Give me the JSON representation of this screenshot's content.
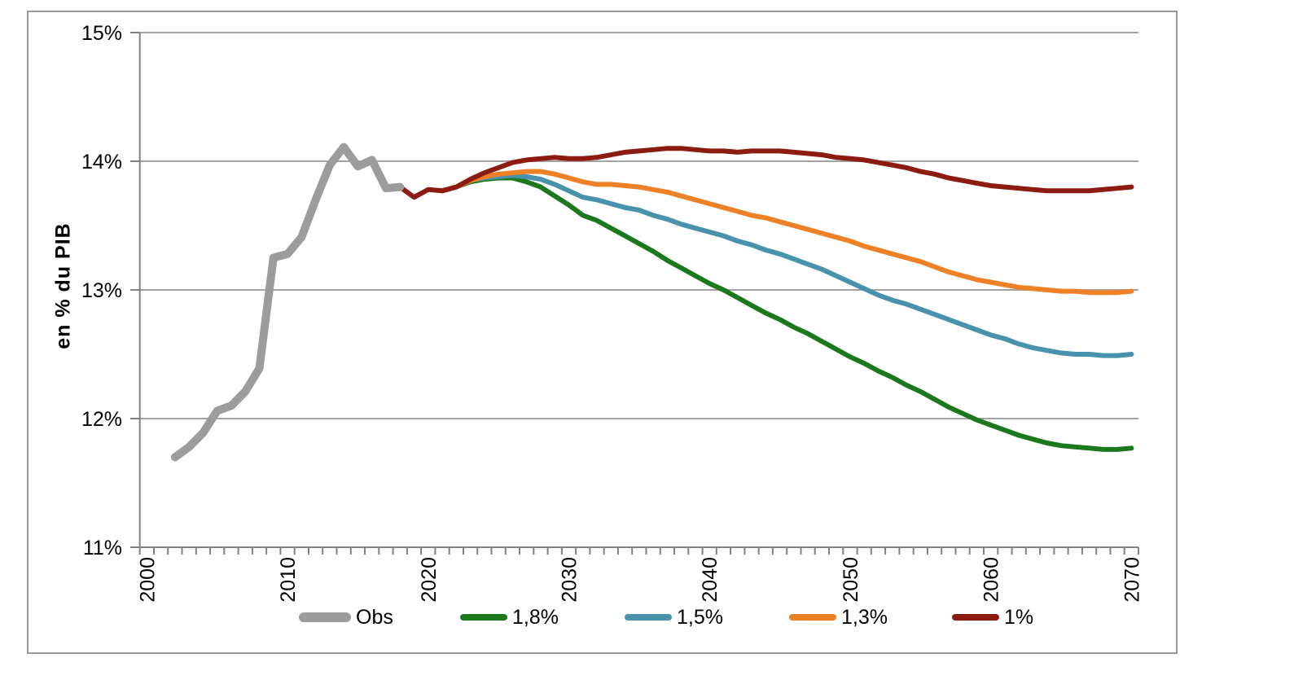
{
  "chart_data": {
    "type": "line",
    "title": "",
    "xlabel": "",
    "ylabel": "en % du PIB",
    "ylim": [
      11,
      15
    ],
    "xlim": [
      2000,
      2070
    ],
    "grid": true,
    "legend_position": "bottom",
    "x_minor_tick_interval_years": 1,
    "y_ticks": [
      {
        "label": "15%",
        "value": 15
      },
      {
        "label": "14%",
        "value": 14
      },
      {
        "label": "13%",
        "value": 13
      },
      {
        "label": "12%",
        "value": 12
      },
      {
        "label": "11%",
        "value": 11
      }
    ],
    "x_ticks": [
      {
        "label": "2000",
        "value": 2000
      },
      {
        "label": "2010",
        "value": 2010
      },
      {
        "label": "2020",
        "value": 2020
      },
      {
        "label": "2030",
        "value": 2030
      },
      {
        "label": "2040",
        "value": 2040
      },
      {
        "label": "2050",
        "value": 2050
      },
      {
        "label": "2060",
        "value": 2060
      },
      {
        "label": "2070",
        "value": 2070
      }
    ],
    "series": [
      {
        "name": "Obs",
        "color": "#9C9C9C",
        "line_width": 10,
        "start_year": 2002,
        "values": [
          11.7,
          11.78,
          11.89,
          12.06,
          12.1,
          12.21,
          12.39,
          13.25,
          13.28,
          13.41,
          13.7,
          13.97,
          14.11,
          13.96,
          14.01,
          13.79,
          13.8
        ]
      },
      {
        "name": "1,8%",
        "color": "#1C781C",
        "line_width": 6,
        "start_year": 2021,
        "values": [
          13.77,
          13.8,
          13.84,
          13.86,
          13.87,
          13.87,
          13.84,
          13.8,
          13.73,
          13.66,
          13.58,
          13.54,
          13.48,
          13.42,
          13.36,
          13.3,
          13.23,
          13.17,
          13.11,
          13.05,
          13.0,
          12.94,
          12.88,
          12.82,
          12.77,
          12.71,
          12.66,
          12.6,
          12.54,
          12.48,
          12.43,
          12.37,
          12.32,
          12.26,
          12.21,
          12.15,
          12.09,
          12.04,
          11.99,
          11.95,
          11.91,
          11.87,
          11.84,
          11.81,
          11.79,
          11.78,
          11.77,
          11.76,
          11.76,
          11.77
        ]
      },
      {
        "name": "1,5%",
        "color": "#4892AC",
        "line_width": 6,
        "start_year": 2021,
        "values": [
          13.77,
          13.8,
          13.85,
          13.87,
          13.88,
          13.89,
          13.88,
          13.86,
          13.82,
          13.77,
          13.72,
          13.7,
          13.67,
          13.64,
          13.62,
          13.58,
          13.55,
          13.51,
          13.48,
          13.45,
          13.42,
          13.38,
          13.35,
          13.31,
          13.28,
          13.24,
          13.2,
          13.16,
          13.11,
          13.06,
          13.01,
          12.96,
          12.92,
          12.89,
          12.85,
          12.81,
          12.77,
          12.73,
          12.69,
          12.65,
          12.62,
          12.58,
          12.55,
          12.53,
          12.51,
          12.5,
          12.5,
          12.49,
          12.49,
          12.5
        ]
      },
      {
        "name": "1,3%",
        "color": "#EE8125",
        "line_width": 6,
        "start_year": 2021,
        "values": [
          13.77,
          13.8,
          13.85,
          13.88,
          13.9,
          13.91,
          13.92,
          13.92,
          13.9,
          13.87,
          13.84,
          13.82,
          13.82,
          13.81,
          13.8,
          13.78,
          13.76,
          13.73,
          13.7,
          13.67,
          13.64,
          13.61,
          13.58,
          13.56,
          13.53,
          13.5,
          13.47,
          13.44,
          13.41,
          13.38,
          13.34,
          13.31,
          13.28,
          13.25,
          13.22,
          13.18,
          13.14,
          13.11,
          13.08,
          13.06,
          13.04,
          13.02,
          13.01,
          13.0,
          12.99,
          12.99,
          12.98,
          12.98,
          12.98,
          12.99
        ]
      },
      {
        "name": "1%",
        "color": "#8C1B12",
        "line_width": 6,
        "start_year": 2018,
        "values": [
          13.8,
          13.72,
          13.78,
          13.77,
          13.8,
          13.86,
          13.91,
          13.95,
          13.99,
          14.01,
          14.02,
          14.03,
          14.02,
          14.02,
          14.03,
          14.05,
          14.07,
          14.08,
          14.09,
          14.1,
          14.1,
          14.09,
          14.08,
          14.08,
          14.07,
          14.08,
          14.08,
          14.08,
          14.07,
          14.06,
          14.05,
          14.03,
          14.02,
          14.01,
          13.99,
          13.97,
          13.95,
          13.92,
          13.9,
          13.87,
          13.85,
          13.83,
          13.81,
          13.8,
          13.79,
          13.78,
          13.77,
          13.77,
          13.77,
          13.77,
          13.78,
          13.79,
          13.8
        ]
      }
    ]
  },
  "colors": {
    "gridline": "#A3A3A3",
    "axis": "#808080",
    "frame_border": "#979797",
    "text": "#000000",
    "background": "#FFFFFF"
  }
}
